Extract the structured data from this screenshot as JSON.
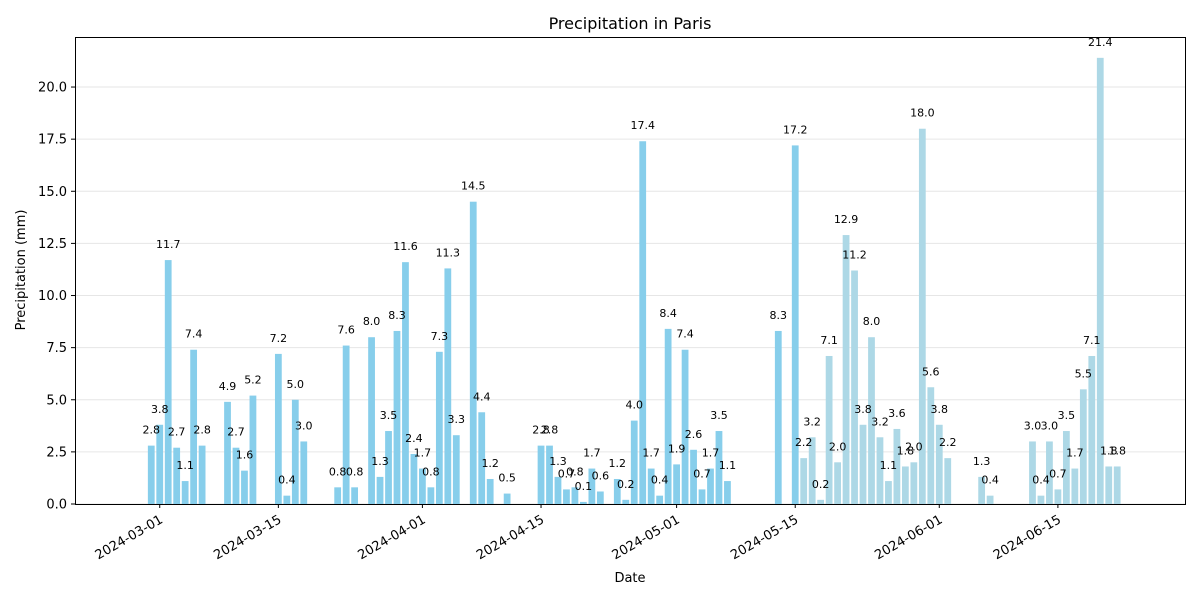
{
  "chart_data": {
    "type": "bar",
    "title": "Precipitation in Paris",
    "xlabel": "Date",
    "ylabel": "Precipitation (mm)",
    "ylim": [
      0,
      22.4
    ],
    "xlim": [
      "2024-02-20",
      "2024-06-30"
    ],
    "grid": "horizontal",
    "yticks": [
      "0.0",
      "2.5",
      "5.0",
      "7.5",
      "10.0",
      "12.5",
      "15.0",
      "17.5",
      "20.0"
    ],
    "xticks": [
      "2024-03-01",
      "2024-03-15",
      "2024-04-01",
      "2024-04-15",
      "2024-05-01",
      "2024-05-15",
      "2024-06-01",
      "2024-06-15"
    ],
    "colors": {
      "bar": "#87ceeb",
      "bar_late": "#add8e6"
    },
    "series": [
      {
        "values": [
          {
            "date": "2024-02-29",
            "value": 2.8
          },
          {
            "date": "2024-03-01",
            "value": 3.8
          },
          {
            "date": "2024-03-02",
            "value": 11.7
          },
          {
            "date": "2024-03-03",
            "value": 2.7
          },
          {
            "date": "2024-03-04",
            "value": 1.1
          },
          {
            "date": "2024-03-05",
            "value": 7.4
          },
          {
            "date": "2024-03-06",
            "value": 2.8
          },
          {
            "date": "2024-03-09",
            "value": 4.9
          },
          {
            "date": "2024-03-10",
            "value": 2.7
          },
          {
            "date": "2024-03-11",
            "value": 1.6
          },
          {
            "date": "2024-03-12",
            "value": 5.2
          },
          {
            "date": "2024-03-15",
            "value": 7.2
          },
          {
            "date": "2024-03-16",
            "value": 0.4
          },
          {
            "date": "2024-03-17",
            "value": 5.0
          },
          {
            "date": "2024-03-18",
            "value": 3.0
          },
          {
            "date": "2024-03-22",
            "value": 0.8
          },
          {
            "date": "2024-03-23",
            "value": 7.6
          },
          {
            "date": "2024-03-24",
            "value": 0.8
          },
          {
            "date": "2024-03-26",
            "value": 8.0
          },
          {
            "date": "2024-03-27",
            "value": 1.3
          },
          {
            "date": "2024-03-28",
            "value": 3.5
          },
          {
            "date": "2024-03-29",
            "value": 8.3
          },
          {
            "date": "2024-03-30",
            "value": 11.6
          },
          {
            "date": "2024-03-31",
            "value": 2.4
          },
          {
            "date": "2024-04-01",
            "value": 1.7
          },
          {
            "date": "2024-04-02",
            "value": 0.8
          },
          {
            "date": "2024-04-03",
            "value": 7.3
          },
          {
            "date": "2024-04-04",
            "value": 11.3
          },
          {
            "date": "2024-04-05",
            "value": 3.3
          },
          {
            "date": "2024-04-07",
            "value": 14.5
          },
          {
            "date": "2024-04-08",
            "value": 4.4
          },
          {
            "date": "2024-04-09",
            "value": 1.2
          },
          {
            "date": "2024-04-11",
            "value": 0.5
          },
          {
            "date": "2024-04-15",
            "value": 2.8
          },
          {
            "date": "2024-04-16",
            "value": 2.8
          },
          {
            "date": "2024-04-17",
            "value": 1.3
          },
          {
            "date": "2024-04-18",
            "value": 0.7
          },
          {
            "date": "2024-04-19",
            "value": 0.8
          },
          {
            "date": "2024-04-20",
            "value": 0.1
          },
          {
            "date": "2024-04-21",
            "value": 1.7
          },
          {
            "date": "2024-04-22",
            "value": 0.6
          },
          {
            "date": "2024-04-24",
            "value": 1.2
          },
          {
            "date": "2024-04-25",
            "value": 0.2
          },
          {
            "date": "2024-04-26",
            "value": 4.0
          },
          {
            "date": "2024-04-27",
            "value": 17.4
          },
          {
            "date": "2024-04-28",
            "value": 1.7
          },
          {
            "date": "2024-04-29",
            "value": 0.4
          },
          {
            "date": "2024-04-30",
            "value": 8.4
          },
          {
            "date": "2024-05-01",
            "value": 1.9
          },
          {
            "date": "2024-05-02",
            "value": 7.4
          },
          {
            "date": "2024-05-03",
            "value": 2.6
          },
          {
            "date": "2024-05-04",
            "value": 0.7
          },
          {
            "date": "2024-05-05",
            "value": 1.7
          },
          {
            "date": "2024-05-06",
            "value": 3.5
          },
          {
            "date": "2024-05-07",
            "value": 1.1
          },
          {
            "date": "2024-05-13",
            "value": 8.3
          },
          {
            "date": "2024-05-15",
            "value": 17.2
          },
          {
            "date": "2024-05-16",
            "value": 2.2
          },
          {
            "date": "2024-05-17",
            "value": 3.2
          },
          {
            "date": "2024-05-18",
            "value": 0.2
          },
          {
            "date": "2024-05-19",
            "value": 7.1
          },
          {
            "date": "2024-05-20",
            "value": 2.0
          },
          {
            "date": "2024-05-21",
            "value": 12.9
          },
          {
            "date": "2024-05-22",
            "value": 11.2
          },
          {
            "date": "2024-05-23",
            "value": 3.8
          },
          {
            "date": "2024-05-24",
            "value": 8.0
          },
          {
            "date": "2024-05-25",
            "value": 3.2
          },
          {
            "date": "2024-05-26",
            "value": 1.1
          },
          {
            "date": "2024-05-27",
            "value": 3.6
          },
          {
            "date": "2024-05-28",
            "value": 1.8
          },
          {
            "date": "2024-05-29",
            "value": 2.0
          },
          {
            "date": "2024-05-30",
            "value": 18.0
          },
          {
            "date": "2024-05-31",
            "value": 5.6
          },
          {
            "date": "2024-06-01",
            "value": 3.8
          },
          {
            "date": "2024-06-02",
            "value": 2.2
          },
          {
            "date": "2024-06-06",
            "value": 1.3
          },
          {
            "date": "2024-06-07",
            "value": 0.4
          },
          {
            "date": "2024-06-12",
            "value": 3.0
          },
          {
            "date": "2024-06-13",
            "value": 0.4
          },
          {
            "date": "2024-06-14",
            "value": 3.0
          },
          {
            "date": "2024-06-15",
            "value": 0.7
          },
          {
            "date": "2024-06-16",
            "value": 3.5
          },
          {
            "date": "2024-06-17",
            "value": 1.7
          },
          {
            "date": "2024-06-18",
            "value": 5.5
          },
          {
            "date": "2024-06-19",
            "value": 7.1
          },
          {
            "date": "2024-06-20",
            "value": 21.4
          },
          {
            "date": "2024-06-21",
            "value": 1.8
          },
          {
            "date": "2024-06-22",
            "value": 1.8
          }
        ]
      }
    ]
  }
}
